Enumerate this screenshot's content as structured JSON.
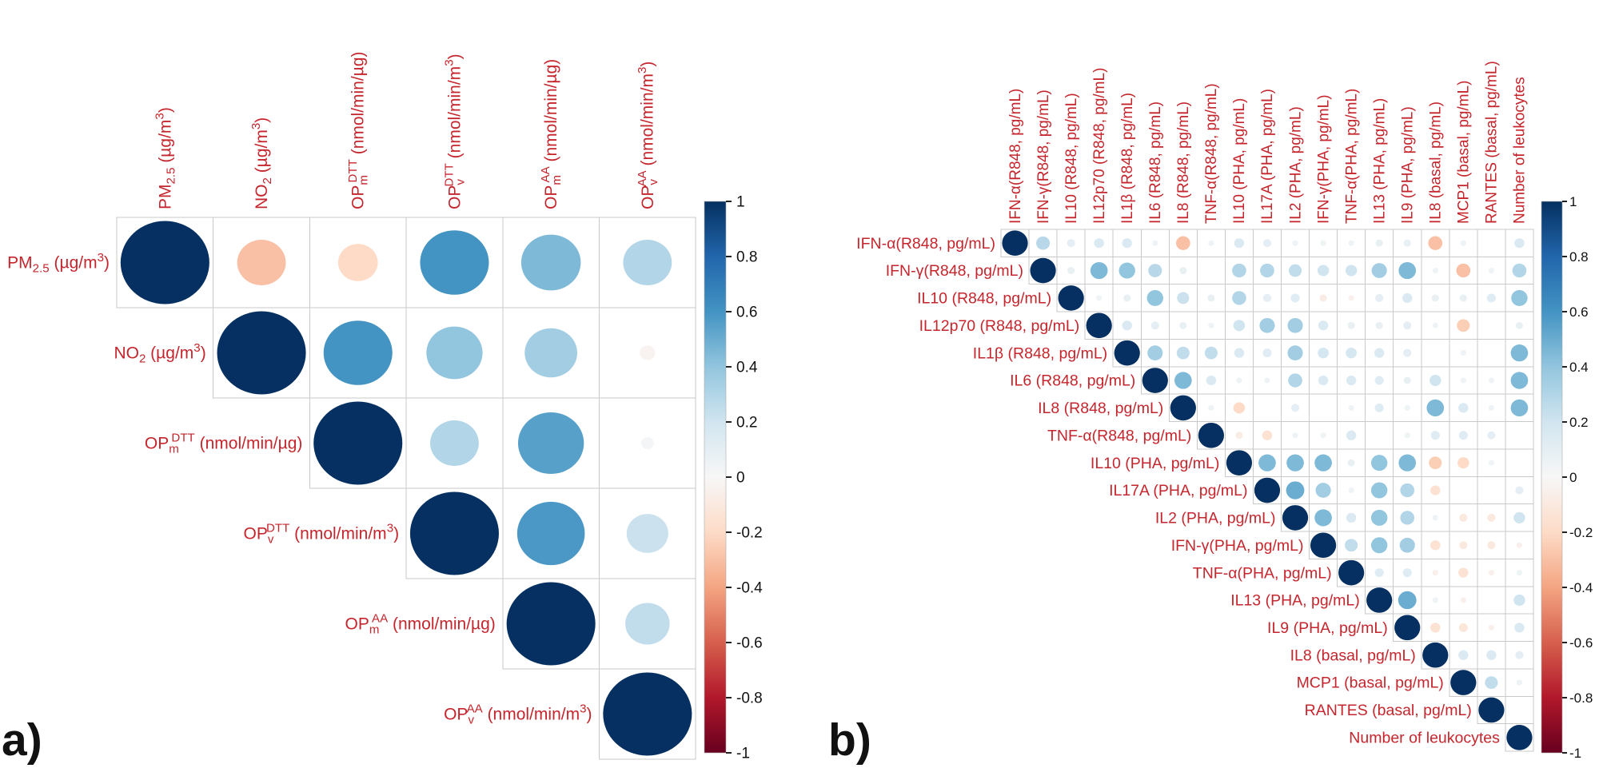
{
  "figure": {
    "description": "Two correlation matrices (corrplot, upper triangle, circle method) with diverging red-white-blue color scale",
    "background": "#ffffff"
  },
  "colors": {
    "label_red": "#C5262D",
    "grid_line": "#C9C9C9",
    "tick_text": "#111111",
    "panel_letter": "#111111",
    "diverging_scale_anchors": [
      {
        "v": 1,
        "c": "#053061"
      },
      {
        "v": 0.8,
        "c": "#2166AC"
      },
      {
        "v": 0.6,
        "c": "#4393C3"
      },
      {
        "v": 0.4,
        "c": "#92C5DE"
      },
      {
        "v": 0.2,
        "c": "#D1E5F0"
      },
      {
        "v": 0,
        "c": "#F7F7F7"
      },
      {
        "v": -0.2,
        "c": "#FDDBC7"
      },
      {
        "v": -0.4,
        "c": "#F4A582"
      },
      {
        "v": -0.6,
        "c": "#D6604D"
      },
      {
        "v": -0.8,
        "c": "#B2182B"
      },
      {
        "v": -1,
        "c": "#67001F"
      }
    ]
  },
  "chart_data": [
    {
      "type": "heatmap",
      "style": "correlation-circle-matrix",
      "layout": "upper-triangle",
      "panel_label": "a)",
      "legend_position": "right",
      "value_range": [
        -1,
        1
      ],
      "variables": [
        "PM_(2.5) (µg/m^(3))",
        "NO_(2) (µg/m^(3))",
        "OP_(m)^(DTT) (nmol/min/µg)",
        "OP_(v)^(DTT) (nmol/min/m^(3))",
        "OP_(m)^(AA) (nmol/min/µg)",
        "OP_(v)^(AA) (nmol/min/m^(3))"
      ],
      "matrix_upper_triangle": [
        [
          1,
          -0.3,
          -0.2,
          0.6,
          0.45,
          0.3
        ],
        [
          1,
          0.6,
          0.4,
          0.35,
          -0.03
        ],
        [
          1,
          0.3,
          0.55,
          0.02
        ],
        [
          1,
          0.58,
          0.22
        ],
        [
          1,
          0.25
        ],
        [
          1
        ]
      ],
      "colorbar_ticks": [
        1,
        0.8,
        0.6,
        0.4,
        0.2,
        0,
        -0.2,
        -0.4,
        -0.6,
        -0.8,
        -1
      ]
    },
    {
      "type": "heatmap",
      "style": "correlation-circle-matrix",
      "layout": "upper-triangle",
      "panel_label": "b)",
      "legend_position": "right",
      "value_range": [
        -1,
        1
      ],
      "variables": [
        "IFN-α(R848, pg/mL)",
        "IFN-γ(R848, pg/mL)",
        "IL10 (R848, pg/mL)",
        "IL12p70 (R848, pg/mL)",
        "IL1β (R848, pg/mL)",
        "IL6 (R848, pg/mL)",
        "IL8 (R848, pg/mL)",
        "TNF-α(R848, pg/mL)",
        "IL10 (PHA, pg/mL)",
        "IL17A (PHA, pg/mL)",
        "IL2 (PHA, pg/mL)",
        "IFN-γ(PHA, pg/mL)",
        "TNF-α(PHA, pg/mL)",
        "IL13 (PHA, pg/mL)",
        "IL9 (PHA, pg/mL)",
        "IL8 (basal, pg/mL)",
        "MCP1 (basal, pg/mL)",
        "RANTES (basal, pg/mL)",
        "Number of leukocytes"
      ],
      "matrix_upper_triangle": [
        [
          1,
          0.28,
          0.1,
          0.15,
          0.15,
          0.05,
          -0.3,
          0.05,
          0.15,
          0.1,
          0.05,
          0.05,
          0.05,
          0.08,
          0.08,
          -0.3,
          0.05,
          0,
          0.15
        ],
        [
          1,
          0.08,
          0.45,
          0.4,
          0.28,
          0.08,
          0,
          0.3,
          0.3,
          0.25,
          0.2,
          0.2,
          0.35,
          0.45,
          0.05,
          -0.3,
          0.05,
          0.3
        ],
        [
          1,
          0.05,
          0.08,
          0.4,
          0.22,
          0.08,
          0.3,
          0.1,
          0.12,
          -0.08,
          -0.05,
          0.1,
          0.15,
          0.08,
          0.08,
          0.12,
          0.4
        ],
        [
          1,
          0.15,
          0.1,
          0.08,
          0.05,
          0.2,
          0.35,
          0.35,
          0.15,
          0.08,
          0.08,
          0.1,
          0.05,
          -0.25,
          0,
          0.08
        ],
        [
          1,
          0.35,
          0.25,
          0.25,
          0.15,
          0.12,
          0.35,
          0.18,
          0.18,
          0.15,
          0.1,
          0,
          0.05,
          0,
          0.45
        ],
        [
          1,
          0.45,
          0.15,
          0.05,
          0.05,
          0.3,
          0.15,
          0.15,
          0.12,
          0.08,
          0.2,
          0.05,
          0.05,
          0.45
        ],
        [
          1,
          0.05,
          -0.2,
          0,
          0.1,
          0,
          0.05,
          0.12,
          0.05,
          0.45,
          0.15,
          0.05,
          0.45
        ],
        [
          1,
          -0.08,
          -0.15,
          0.05,
          0.05,
          0.15,
          0,
          0.05,
          0.12,
          0.12,
          0.1,
          0
        ],
        [
          1,
          0.45,
          0.45,
          0.45,
          0.08,
          0.4,
          0.45,
          -0.25,
          -0.2,
          0.05,
          0
        ],
        [
          1,
          0.5,
          0.35,
          0.05,
          0.4,
          0.3,
          -0.15,
          0,
          0,
          0.1
        ],
        [
          1,
          0.45,
          0.15,
          0.4,
          0.3,
          0.05,
          -0.1,
          -0.1,
          0.2
        ],
        [
          1,
          0.25,
          0.4,
          0.35,
          -0.15,
          -0.1,
          -0.1,
          -0.05
        ],
        [
          1,
          0.12,
          0.12,
          -0.05,
          -0.15,
          -0.05,
          0.05
        ],
        [
          1,
          0.5,
          0.05,
          -0.05,
          0,
          0.2
        ],
        [
          1,
          -0.15,
          -0.12,
          -0.05,
          0.15
        ],
        [
          1,
          0.15,
          0.15,
          0.1
        ],
        [
          1,
          0.25,
          0.05
        ],
        [
          1,
          0
        ],
        [
          1
        ]
      ],
      "colorbar_ticks": [
        1,
        0.8,
        0.6,
        0.4,
        0.2,
        0,
        -0.2,
        -0.4,
        -0.6,
        -0.8,
        -1
      ]
    }
  ]
}
